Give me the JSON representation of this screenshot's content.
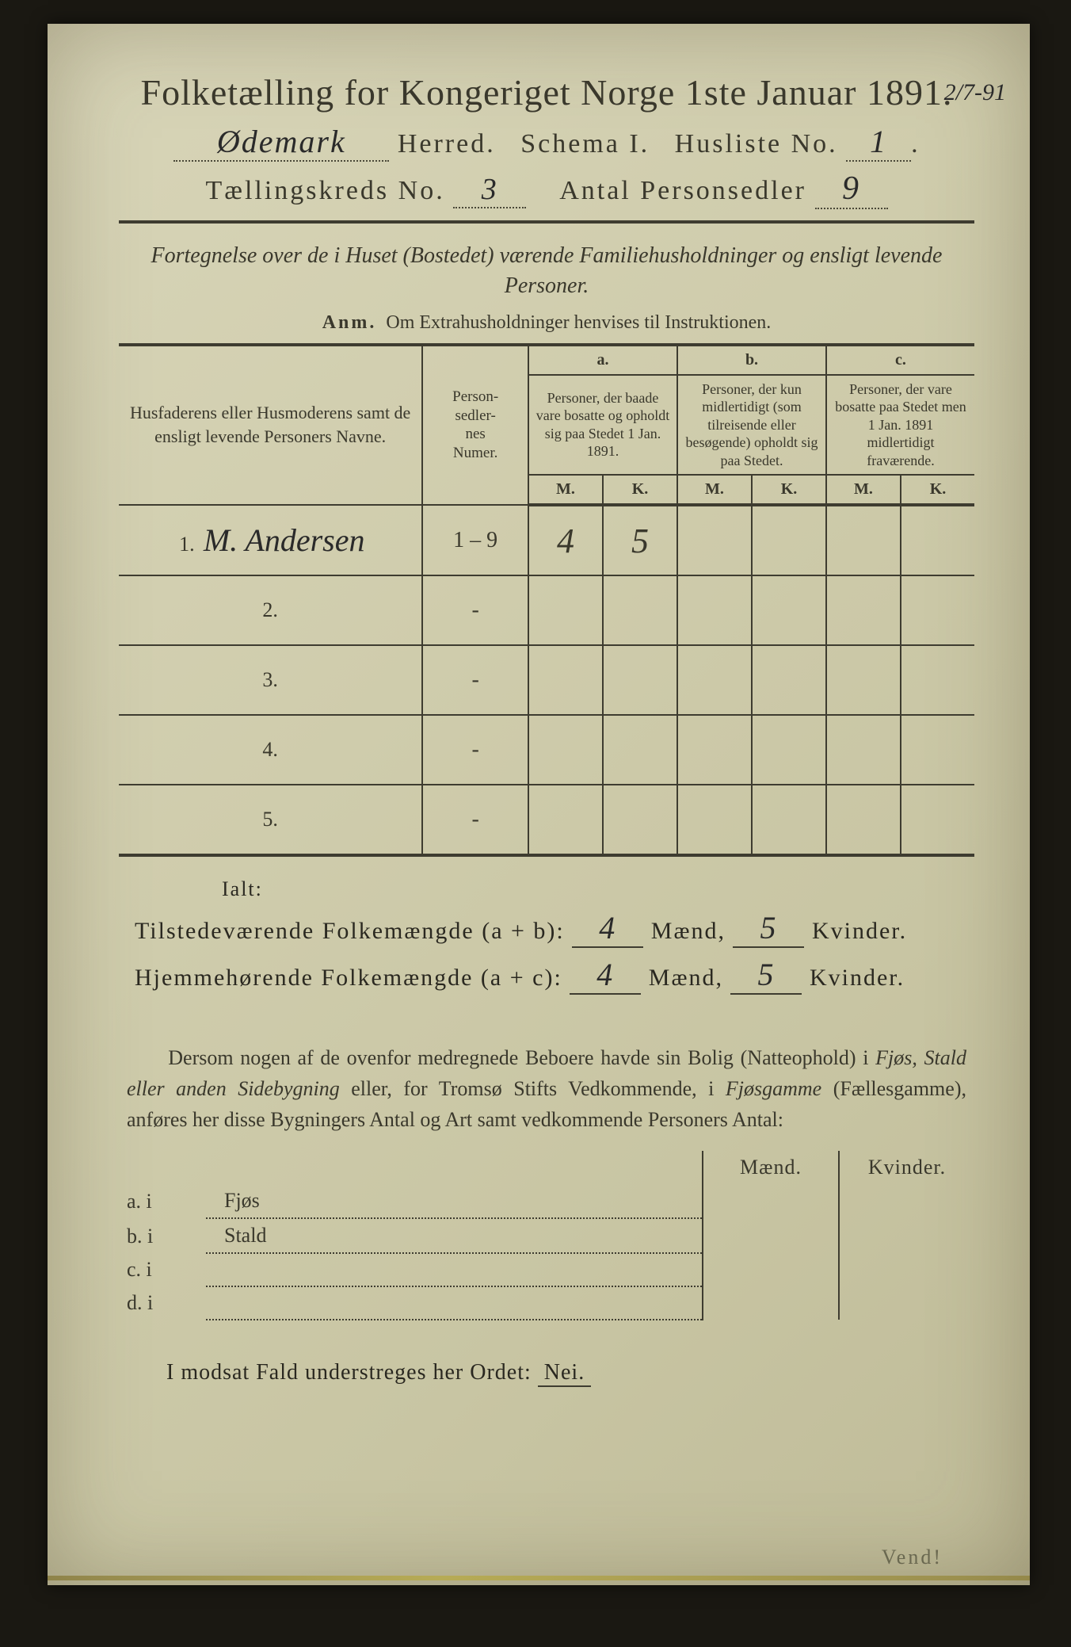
{
  "header": {
    "title": "Folketælling for Kongeriget Norge 1ste Januar 1891.",
    "herred_value": "Ødemark",
    "herred_label": "Herred.",
    "schema_label": "Schema I.",
    "husliste_label": "Husliste No.",
    "husliste_value": "1",
    "kreds_label": "Tællingskreds No.",
    "kreds_value": "3",
    "person_label": "Antal Personsedler",
    "person_value": "9",
    "corner_note": "2/7-91"
  },
  "intro": {
    "fortegnelse": "Fortegnelse over de i Huset (Bostedet) værende Familiehusholdninger og ensligt levende Personer.",
    "anm_label": "Anm.",
    "anm_text": "Om Extrahusholdninger henvises til Instruktionen."
  },
  "table": {
    "col_name": "Husfaderens eller Husmoderens samt de ensligt levende Personers Navne.",
    "col_num": "Person-\nsedler-\nnes\nNumer.",
    "abc": {
      "a": "a.",
      "b": "b.",
      "c": "c."
    },
    "col_a": "Personer, der baade vare bosatte og opholdt sig paa Stedet 1 Jan. 1891.",
    "col_b": "Personer, der kun midlertidigt (som tilreisende eller besøgende) opholdt sig paa Stedet.",
    "col_c": "Personer, der vare bosatte paa Stedet men 1 Jan. 1891 midlertidigt fraværende.",
    "m": "M.",
    "k": "K.",
    "rows": [
      {
        "n": "1.",
        "name": "M. Andersen",
        "num": "1 – 9",
        "am": "4",
        "ak": "5",
        "bm": "",
        "bk": "",
        "cm": "",
        "ck": ""
      },
      {
        "n": "2.",
        "name": "",
        "num": "-",
        "am": "",
        "ak": "",
        "bm": "",
        "bk": "",
        "cm": "",
        "ck": ""
      },
      {
        "n": "3.",
        "name": "",
        "num": "-",
        "am": "",
        "ak": "",
        "bm": "",
        "bk": "",
        "cm": "",
        "ck": ""
      },
      {
        "n": "4.",
        "name": "",
        "num": "-",
        "am": "",
        "ak": "",
        "bm": "",
        "bk": "",
        "cm": "",
        "ck": ""
      },
      {
        "n": "5.",
        "name": "",
        "num": "-",
        "am": "",
        "ak": "",
        "bm": "",
        "bk": "",
        "cm": "",
        "ck": ""
      }
    ]
  },
  "totals": {
    "ialt": "Ialt:",
    "line1_label": "Tilstedeværende Folkemængde (a + b):",
    "line2_label": "Hjemmehørende Folkemængde (a + c):",
    "maend": "Mænd,",
    "kvinder": "Kvinder.",
    "l1_m": "4",
    "l1_k": "5",
    "l2_m": "4",
    "l2_k": "5"
  },
  "para": {
    "text1": "Dersom nogen af de ovenfor medregnede Beboere havde sin Bolig (Natteophold) i ",
    "it1": "Fjøs, Stald eller anden Sidebygning",
    "text2": " eller, for Tromsø Stifts Vedkommende, i ",
    "it2": "Fjøsgamme",
    "text3": " (Fællesgamme), anføres her disse Bygningers Antal og Art samt vedkommende Personers Antal:"
  },
  "side": {
    "maend": "Mænd.",
    "kvinder": "Kvinder.",
    "rows": [
      {
        "label": "a.  i",
        "name": "Fjøs"
      },
      {
        "label": "b.  i",
        "name": "Stald"
      },
      {
        "label": "c.  i",
        "name": ""
      },
      {
        "label": "d.  i",
        "name": ""
      }
    ]
  },
  "footer": {
    "neiline_a": "I modsat Fald understreges her Ordet:",
    "nei": "Nei.",
    "vend": "Vend!"
  },
  "style": {
    "page_bg": "#d0cdaf",
    "ink": "#3a382c",
    "hand_ink": "#2a2a2a"
  }
}
